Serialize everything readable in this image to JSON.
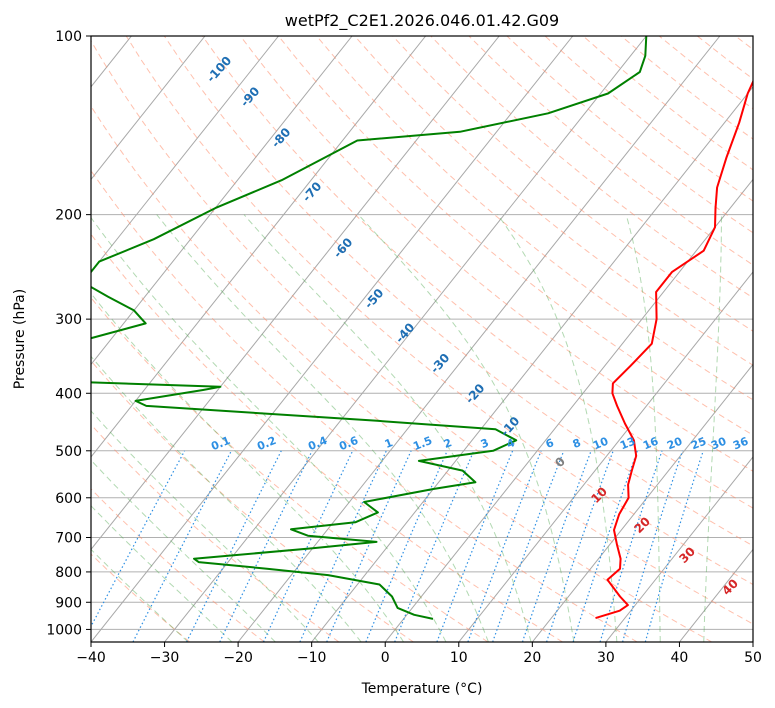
{
  "chart_data": {
    "type": "line",
    "subtype": "skew-T log-P diagram",
    "title": "wetPf2_C2E1.2026.046.01.42.G09",
    "xlabel": "Temperature (°C)",
    "ylabel": "Pressure (hPa)",
    "xlim": [
      -40,
      50
    ],
    "ylim": [
      1050,
      100
    ],
    "y_scale": "log",
    "x_ticks": [
      "−40",
      "−30",
      "−20",
      "−10",
      "0",
      "10",
      "20",
      "30",
      "40",
      "50"
    ],
    "y_ticks": [
      "100",
      "200",
      "300",
      "400",
      "500",
      "600",
      "700",
      "800",
      "900",
      "1000"
    ],
    "grid": true,
    "colors": {
      "temperature": "#ff0000",
      "dewpoint": "#008000",
      "isotherm": "#8c8c8c",
      "dry_adiabat": "#ff8c69",
      "moist_adiabat": "#55aa55",
      "mixing_ratio": "#2d8fe3",
      "lcl_line": "#d8b48c"
    },
    "series": [
      {
        "key": "temperature",
        "points": [
          [
            26,
            957
          ],
          [
            28.5,
            930
          ],
          [
            29,
            910
          ],
          [
            27,
            880
          ],
          [
            23.5,
            825
          ],
          [
            24,
            790
          ],
          [
            23,
            760
          ],
          [
            21,
            720
          ],
          [
            19,
            680
          ],
          [
            18,
            640
          ],
          [
            17.5,
            600
          ],
          [
            16,
            570
          ],
          [
            15,
            540
          ],
          [
            14,
            510
          ],
          [
            12,
            480
          ],
          [
            9,
            450
          ],
          [
            6,
            420
          ],
          [
            4,
            400
          ],
          [
            3,
            385
          ],
          [
            3.5,
            360
          ],
          [
            4,
            330
          ],
          [
            2,
            300
          ],
          [
            -1,
            270
          ],
          [
            -1,
            250
          ],
          [
            1,
            230
          ],
          [
            0,
            210
          ],
          [
            -2,
            195
          ],
          [
            -4,
            180
          ],
          [
            -6,
            160
          ],
          [
            -8,
            140
          ],
          [
            -10,
            125
          ],
          [
            -11,
            115
          ],
          [
            -8,
            105
          ],
          [
            -5,
            100
          ]
        ]
      },
      {
        "key": "dewpoint",
        "points": [
          [
            4,
            960
          ],
          [
            1,
            945
          ],
          [
            -2,
            920
          ],
          [
            -4,
            880
          ],
          [
            -7,
            840
          ],
          [
            -15,
            810
          ],
          [
            -24,
            790
          ],
          [
            -34,
            770
          ],
          [
            -35,
            760
          ],
          [
            -20,
            730
          ],
          [
            -12,
            712
          ],
          [
            -22,
            695
          ],
          [
            -25,
            678
          ],
          [
            -17,
            660
          ],
          [
            -15,
            635
          ],
          [
            -18,
            610
          ],
          [
            -10,
            580
          ],
          [
            -5,
            565
          ],
          [
            -8,
            540
          ],
          [
            -15,
            520
          ],
          [
            -6,
            500
          ],
          [
            -4,
            480
          ],
          [
            -8,
            460
          ],
          [
            -25,
            445
          ],
          [
            -58,
            420
          ],
          [
            -60,
            412
          ],
          [
            -52,
            395
          ],
          [
            -50,
            390
          ],
          [
            -72,
            382
          ],
          [
            -85,
            380
          ],
          [
            -85,
            370
          ],
          [
            -80,
            350
          ],
          [
            -75,
            330
          ],
          [
            -67,
            305
          ],
          [
            -70,
            290
          ],
          [
            -75,
            275
          ],
          [
            -80,
            260
          ],
          [
            -80,
            240
          ],
          [
            -75,
            220
          ],
          [
            -70,
            195
          ],
          [
            -64,
            175
          ],
          [
            -58,
            150
          ],
          [
            -45,
            145
          ],
          [
            -35,
            135
          ],
          [
            -29,
            125
          ],
          [
            -27,
            115
          ],
          [
            -28,
            108
          ],
          [
            -30,
            100
          ]
        ]
      }
    ],
    "dry_adiabat_labels": [
      "-100",
      "-90",
      "-80",
      "-70",
      "-60",
      "-50",
      "-40",
      "-30",
      "-20",
      "-10"
    ],
    "moist_adiabat_labels": [
      "0",
      "10",
      "20",
      "30",
      "40"
    ],
    "mixing_ratio_labels": [
      "0.1",
      "0.2",
      "0.4",
      "0.6",
      "1",
      "1.5",
      "2",
      "3",
      "4",
      "6",
      "8",
      "10",
      "13",
      "16",
      "20",
      "25",
      "30",
      "36"
    ]
  }
}
